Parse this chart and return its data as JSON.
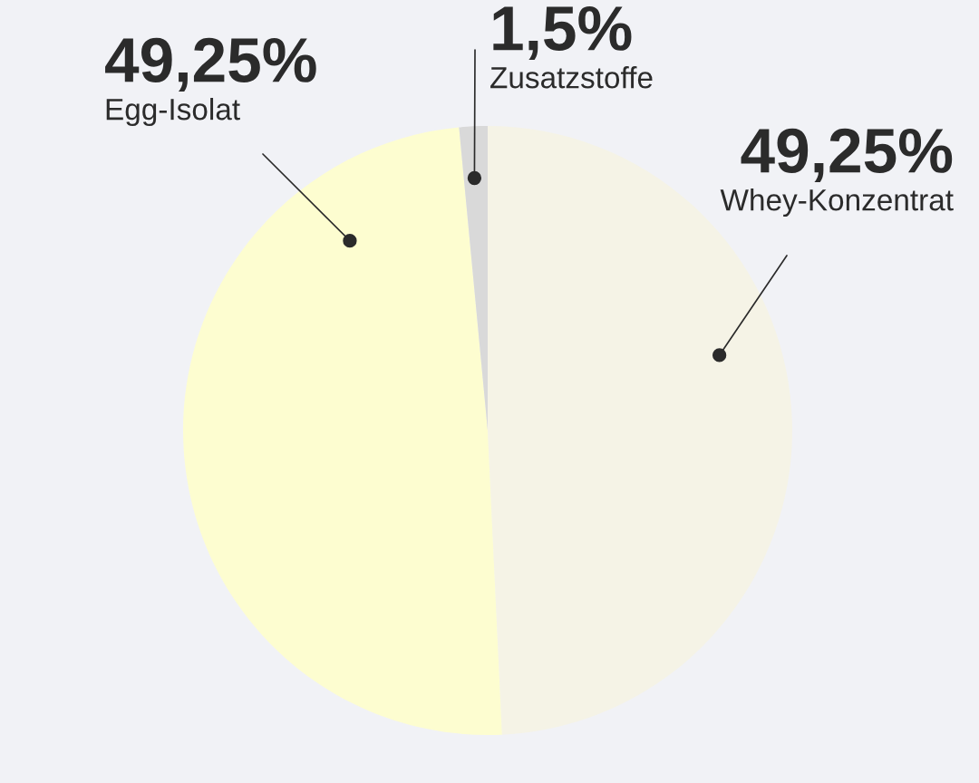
{
  "chart_data": {
    "type": "pie",
    "categories": [
      "Whey-Konzentrat",
      "Egg-Isolat",
      "Zusatzstoffe"
    ],
    "values": [
      49.25,
      49.25,
      1.5
    ],
    "colors": [
      "#f5f3e6",
      "#fdfdd0",
      "#d9d9d9"
    ],
    "value_labels": [
      "49,25%",
      "49,25%",
      "1,5%"
    ]
  }
}
